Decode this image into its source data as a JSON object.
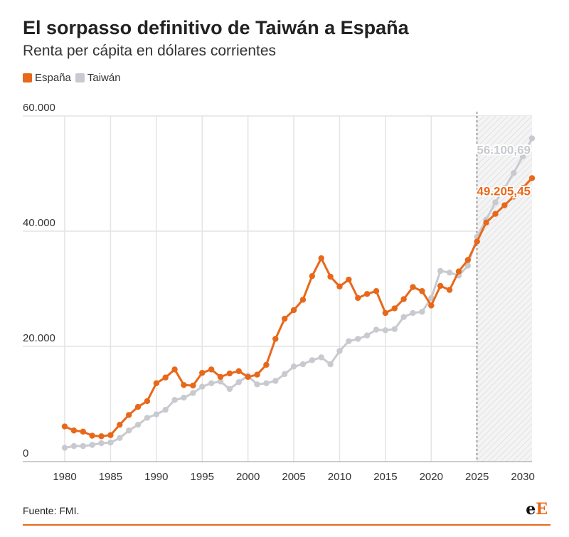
{
  "header": {
    "title": "El sorpasso definitivo de Taiwán a España",
    "subtitle": "Renta per cápita en dólares corrientes"
  },
  "footer": {
    "source": "Fuente: FMI.",
    "logo_e": "e",
    "logo_E": "E"
  },
  "colors": {
    "espana": "#e8681a",
    "taiwan": "#c8cad0",
    "grid": "#e4e4e4",
    "text": "#333333"
  },
  "chart_data": {
    "type": "line",
    "title": "El sorpasso definitivo de Taiwán a España",
    "subtitle": "Renta per cápita en dólares corrientes",
    "xlabel": "",
    "ylabel": "",
    "xlim": [
      1980,
      2031
    ],
    "ylim": [
      0,
      60000
    ],
    "grid": true,
    "legend": "top-left",
    "x_ticks": [
      "1980",
      "1985",
      "1990",
      "1995",
      "2000",
      "2005",
      "2010",
      "2015",
      "2020",
      "2025",
      "2030"
    ],
    "x_tick_values": [
      1980,
      1985,
      1990,
      1995,
      2000,
      2005,
      2010,
      2015,
      2020,
      2025,
      2030
    ],
    "y_ticks": [
      "0",
      "20.000",
      "40.000",
      "60.000"
    ],
    "y_tick_values": [
      0,
      20000,
      40000,
      60000
    ],
    "forecast_start": 2025,
    "x": [
      1980,
      1981,
      1982,
      1983,
      1984,
      1985,
      1986,
      1987,
      1988,
      1989,
      1990,
      1991,
      1992,
      1993,
      1994,
      1995,
      1996,
      1997,
      1998,
      1999,
      2000,
      2001,
      2002,
      2003,
      2004,
      2005,
      2006,
      2007,
      2008,
      2009,
      2010,
      2011,
      2012,
      2013,
      2014,
      2015,
      2016,
      2017,
      2018,
      2019,
      2020,
      2021,
      2022,
      2023,
      2024,
      2025,
      2026,
      2027,
      2028,
      2029,
      2030,
      2031
    ],
    "series": [
      {
        "name": "España",
        "values": [
          6100,
          5400,
          5200,
          4500,
          4400,
          4600,
          6400,
          8100,
          9500,
          10500,
          13600,
          14600,
          16000,
          13300,
          13200,
          15400,
          16000,
          14700,
          15300,
          15700,
          14700,
          15100,
          16800,
          21300,
          24800,
          26300,
          28100,
          32200,
          35300,
          32100,
          30400,
          31600,
          28400,
          29100,
          29600,
          25800,
          26600,
          28200,
          30300,
          29600,
          27100,
          30500,
          29800,
          33000,
          35000,
          38200,
          41500,
          43000,
          44500,
          46000,
          47500,
          49205.45
        ],
        "end_label": "49.205,45"
      },
      {
        "name": "Taiwán",
        "values": [
          2400,
          2700,
          2700,
          2900,
          3200,
          3300,
          4100,
          5400,
          6400,
          7600,
          8200,
          9000,
          10700,
          11100,
          11900,
          13000,
          13600,
          13900,
          12600,
          13800,
          14900,
          13400,
          13600,
          14000,
          15200,
          16500,
          16900,
          17600,
          18100,
          16900,
          19200,
          20900,
          21300,
          21900,
          22900,
          22800,
          23000,
          25100,
          25800,
          26000,
          28400,
          33100,
          32800,
          32300,
          34000,
          39000,
          42000,
          45000,
          47500,
          50100,
          53000,
          56100.69
        ],
        "end_label": "56.100,69"
      }
    ]
  }
}
